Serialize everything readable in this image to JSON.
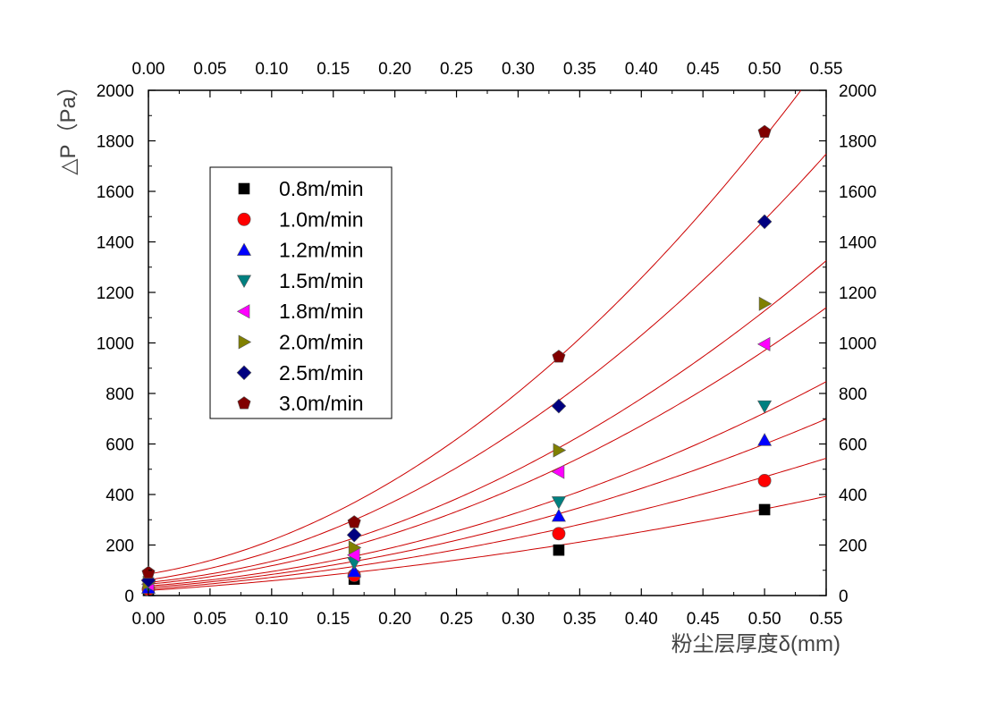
{
  "chart_data": {
    "type": "scatter",
    "xlabel": "粉尘层厚度δ(mm)",
    "ylabel": "△P（Pa）",
    "xlim": [
      0,
      0.55
    ],
    "ylim": [
      0,
      2000
    ],
    "x_ticks": [
      "0.00",
      "0.05",
      "0.10",
      "0.15",
      "0.20",
      "0.25",
      "0.30",
      "0.35",
      "0.40",
      "0.45",
      "0.50",
      "0.55"
    ],
    "y_ticks": [
      "0",
      "200",
      "400",
      "600",
      "800",
      "1000",
      "1200",
      "1400",
      "1600",
      "1800",
      "2000"
    ],
    "x": [
      0,
      0.167,
      0.333,
      0.5
    ],
    "series": [
      {
        "name": "0.8m/min",
        "marker": "square",
        "color": "#000000",
        "values": [
          20,
          65,
          180,
          340
        ],
        "fit": [
          20,
          320,
          650
        ]
      },
      {
        "name": "1.0m/min",
        "marker": "circle",
        "color": "#ff0000",
        "values": [
          25,
          80,
          245,
          455
        ],
        "fit": [
          25,
          365,
          1050
        ]
      },
      {
        "name": "1.2m/min",
        "marker": "triangle-up",
        "color": "#0000ff",
        "values": [
          30,
          95,
          315,
          615
        ],
        "fit": [
          32,
          360,
          1550
        ]
      },
      {
        "name": "1.5m/min",
        "marker": "triangle-down",
        "color": "#008080",
        "values": [
          40,
          130,
          370,
          750
        ],
        "fit": [
          38,
          370,
          2000
        ]
      },
      {
        "name": "1.8m/min",
        "marker": "triangle-left",
        "color": "#ff00ff",
        "values": [
          45,
          160,
          490,
          995
        ],
        "fit": [
          45,
          450,
          2800
        ]
      },
      {
        "name": "2.0m/min",
        "marker": "triangle-right",
        "color": "#808000",
        "values": [
          50,
          190,
          575,
          1155
        ],
        "fit": [
          52,
          500,
          3300
        ]
      },
      {
        "name": "2.5m/min",
        "marker": "diamond",
        "color": "#000080",
        "values": [
          60,
          240,
          750,
          1480
        ],
        "fit": [
          62,
          700,
          4300
        ]
      },
      {
        "name": "3.0m/min",
        "marker": "pentagon",
        "color": "#800000",
        "values": [
          90,
          290,
          945,
          1835
        ],
        "fit": [
          85,
          810,
          5300
        ]
      }
    ],
    "fit_color": "#cc0000",
    "legend_position": "top-left",
    "grid": false
  }
}
